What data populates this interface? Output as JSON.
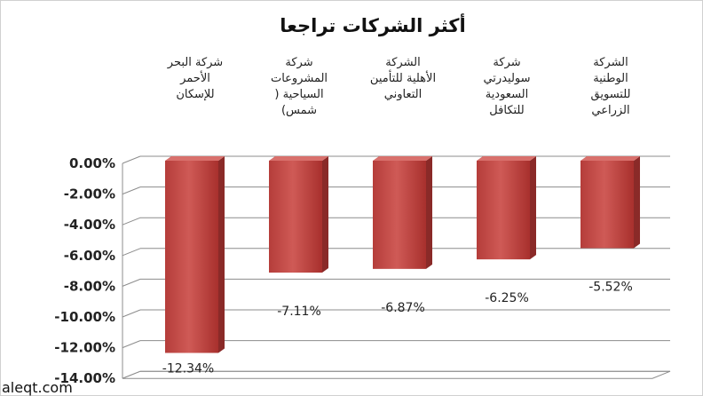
{
  "watermark": "aleqt.com",
  "chart_data": {
    "type": "bar",
    "title": "أكثر الشركات تراجعا",
    "categories": [
      [
        "شركة البحر",
        "الأحمر",
        "للإسكان"
      ],
      [
        "شركة",
        "المشروعات",
        "السياحية (",
        "شمس)"
      ],
      [
        "الشركة",
        "الأهلية للتأمين",
        "التعاوني"
      ],
      [
        "شركة",
        "سوليدرتي",
        "السعودية",
        "للتكافل"
      ],
      [
        "الشركة",
        "الوطنية",
        "للتسويق",
        "الزراعي"
      ]
    ],
    "values": [
      -12.34,
      -7.11,
      -6.87,
      -6.25,
      -5.52
    ],
    "value_labels": [
      "-12.34%",
      "-7.11%",
      "-6.87%",
      "-6.25%",
      "-5.52%"
    ],
    "ylim": [
      -14,
      0
    ],
    "yticks": [
      "0.00%",
      "-2.00%",
      "-4.00%",
      "-6.00%",
      "-8.00%",
      "-10.00%",
      "-12.00%",
      "-14.00%"
    ],
    "grid": true,
    "bar_color": "#c0504d"
  }
}
